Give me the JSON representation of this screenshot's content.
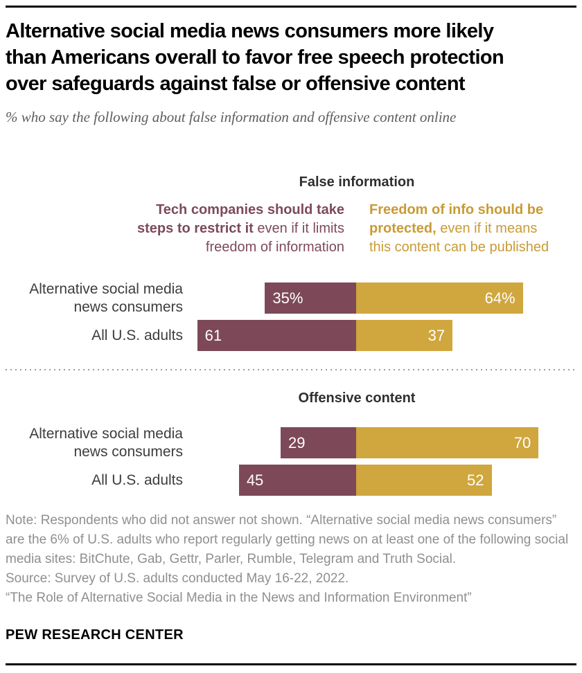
{
  "colors": {
    "restrict_maroon": "#7D4959",
    "protect_gold": "#D0A63E",
    "legend_gold_text": "#C89B35",
    "legend_maroon_text": "#7D4A5A"
  },
  "header": {
    "title_lines": [
      "Alternative social media news consumers more likely",
      "than Americans overall to favor free speech protection",
      "over safeguards against false or offensive content"
    ],
    "subtitle": "% who say the following about false information and offensive content online"
  },
  "legend": {
    "left": {
      "lines": [
        {
          "b": "Tech companies should take",
          "r": ""
        },
        {
          "b": "steps to restrict it",
          "r": " even if it limits"
        },
        {
          "b": "",
          "r": "freedom of information"
        }
      ]
    },
    "right": {
      "lines": [
        {
          "b": "Freedom of info should be",
          "r": ""
        },
        {
          "b": "protected,",
          "r": " even if it means"
        },
        {
          "b": "",
          "r": "this content can be published"
        }
      ]
    }
  },
  "chart_data": {
    "type": "bar",
    "subtype": "horizontal-diverging-stacked",
    "unit": "%",
    "layout": {
      "orientation": "horizontal",
      "diverging_center": true,
      "value_labels": "inside",
      "gridlines": false,
      "axis_visible": false
    },
    "panels": [
      {
        "title": "False information",
        "categories": [
          "Alternative social media news consumers",
          "All U.S. adults"
        ],
        "category_lines": [
          [
            "Alternative social media",
            "news consumers"
          ],
          [
            "All U.S. adults"
          ]
        ],
        "series": [
          {
            "name": "Tech companies should take steps to restrict it even if it limits freedom of information",
            "color": "#7D4959",
            "values": [
              35,
              61
            ],
            "labels": [
              "35%",
              "61"
            ]
          },
          {
            "name": "Freedom of info should be protected, even if it means this content can be published",
            "color": "#D0A63E",
            "values": [
              64,
              37
            ],
            "labels": [
              "64%",
              "37"
            ]
          }
        ]
      },
      {
        "title": "Offensive content",
        "categories": [
          "Alternative social media news consumers",
          "All U.S. adults"
        ],
        "category_lines": [
          [
            "Alternative social media",
            "news consumers"
          ],
          [
            "All U.S. adults"
          ]
        ],
        "series": [
          {
            "name": "Tech companies should take steps to restrict it even if it limits freedom of information",
            "color": "#7D4959",
            "values": [
              29,
              45
            ],
            "labels": [
              "29",
              "45"
            ]
          },
          {
            "name": "Freedom of info should be protected, even if it means this content can be published",
            "color": "#D0A63E",
            "values": [
              70,
              52
            ],
            "labels": [
              "70",
              "52"
            ]
          }
        ]
      }
    ]
  },
  "footer": {
    "note": "Note: Respondents who did not answer not shown. “Alternative social media news consumers” are the 6% of U.S. adults who report regularly getting news on at least one of the following social media sites: BitChute, Gab, Gettr, Parler, Rumble, Telegram and Truth Social.",
    "source": "Source: Survey of U.S. adults conducted May 16-22, 2022.",
    "report": "“The Role of Alternative Social Media in the News and Information Environment”",
    "wordmark": "PEW RESEARCH CENTER"
  }
}
